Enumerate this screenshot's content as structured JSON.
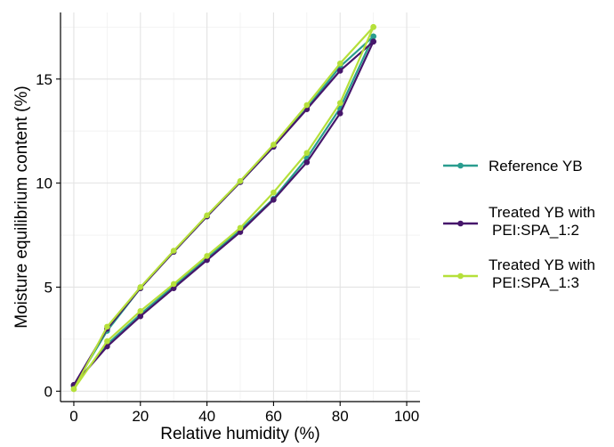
{
  "chart_data": {
    "type": "line",
    "xlabel": "Relative humidity (%)",
    "ylabel": "Moisture equilibrium content (%)",
    "xlim": [
      -4,
      104
    ],
    "ylim": [
      -0.5,
      18.2
    ],
    "xticks": [
      0,
      20,
      40,
      60,
      80,
      100
    ],
    "yticks": [
      0,
      5,
      10,
      15
    ],
    "grid": true,
    "legend_position": "right",
    "series": [
      {
        "name": "Reference YB",
        "color": "#2a9d8f",
        "branches": [
          {
            "x": [
              0,
              10,
              20,
              30,
              40,
              50,
              60,
              70,
              80,
              90
            ],
            "y": [
              0.25,
              2.9,
              4.95,
              6.7,
              8.4,
              10.05,
              11.75,
              13.6,
              15.6,
              17.05
            ]
          },
          {
            "x": [
              0,
              10,
              20,
              30,
              40,
              50,
              60,
              70,
              80,
              90
            ],
            "y": [
              0.25,
              2.25,
              3.7,
              5.05,
              6.4,
              7.75,
              9.25,
              11.2,
              13.6,
              17.05
            ]
          }
        ]
      },
      {
        "name": "Treated YB with\nPEI:SPA_1:2",
        "color": "#46166b",
        "branches": [
          {
            "x": [
              0,
              10,
              20,
              30,
              40,
              50,
              60,
              70,
              80,
              90
            ],
            "y": [
              0.3,
              3.0,
              4.95,
              6.7,
              8.4,
              10.05,
              11.75,
              13.55,
              15.4,
              16.8
            ]
          },
          {
            "x": [
              0,
              10,
              20,
              30,
              40,
              50,
              60,
              70,
              80,
              90
            ],
            "y": [
              0.3,
              2.15,
              3.6,
              4.95,
              6.3,
              7.65,
              9.2,
              11.0,
              13.35,
              16.8
            ]
          }
        ]
      },
      {
        "name": "Treated YB with\nPEI:SPA_1:3",
        "color": "#b5e03a",
        "branches": [
          {
            "x": [
              0,
              10,
              20,
              30,
              40,
              50,
              60,
              70,
              80,
              90
            ],
            "y": [
              0.1,
              3.1,
              5.0,
              6.75,
              8.45,
              10.1,
              11.85,
              13.75,
              15.75,
              17.5
            ]
          },
          {
            "x": [
              0,
              10,
              20,
              30,
              40,
              50,
              60,
              70,
              80,
              90
            ],
            "y": [
              0.1,
              2.4,
              3.85,
              5.15,
              6.5,
              7.85,
              9.55,
              11.45,
              13.85,
              17.5
            ]
          }
        ]
      }
    ]
  }
}
